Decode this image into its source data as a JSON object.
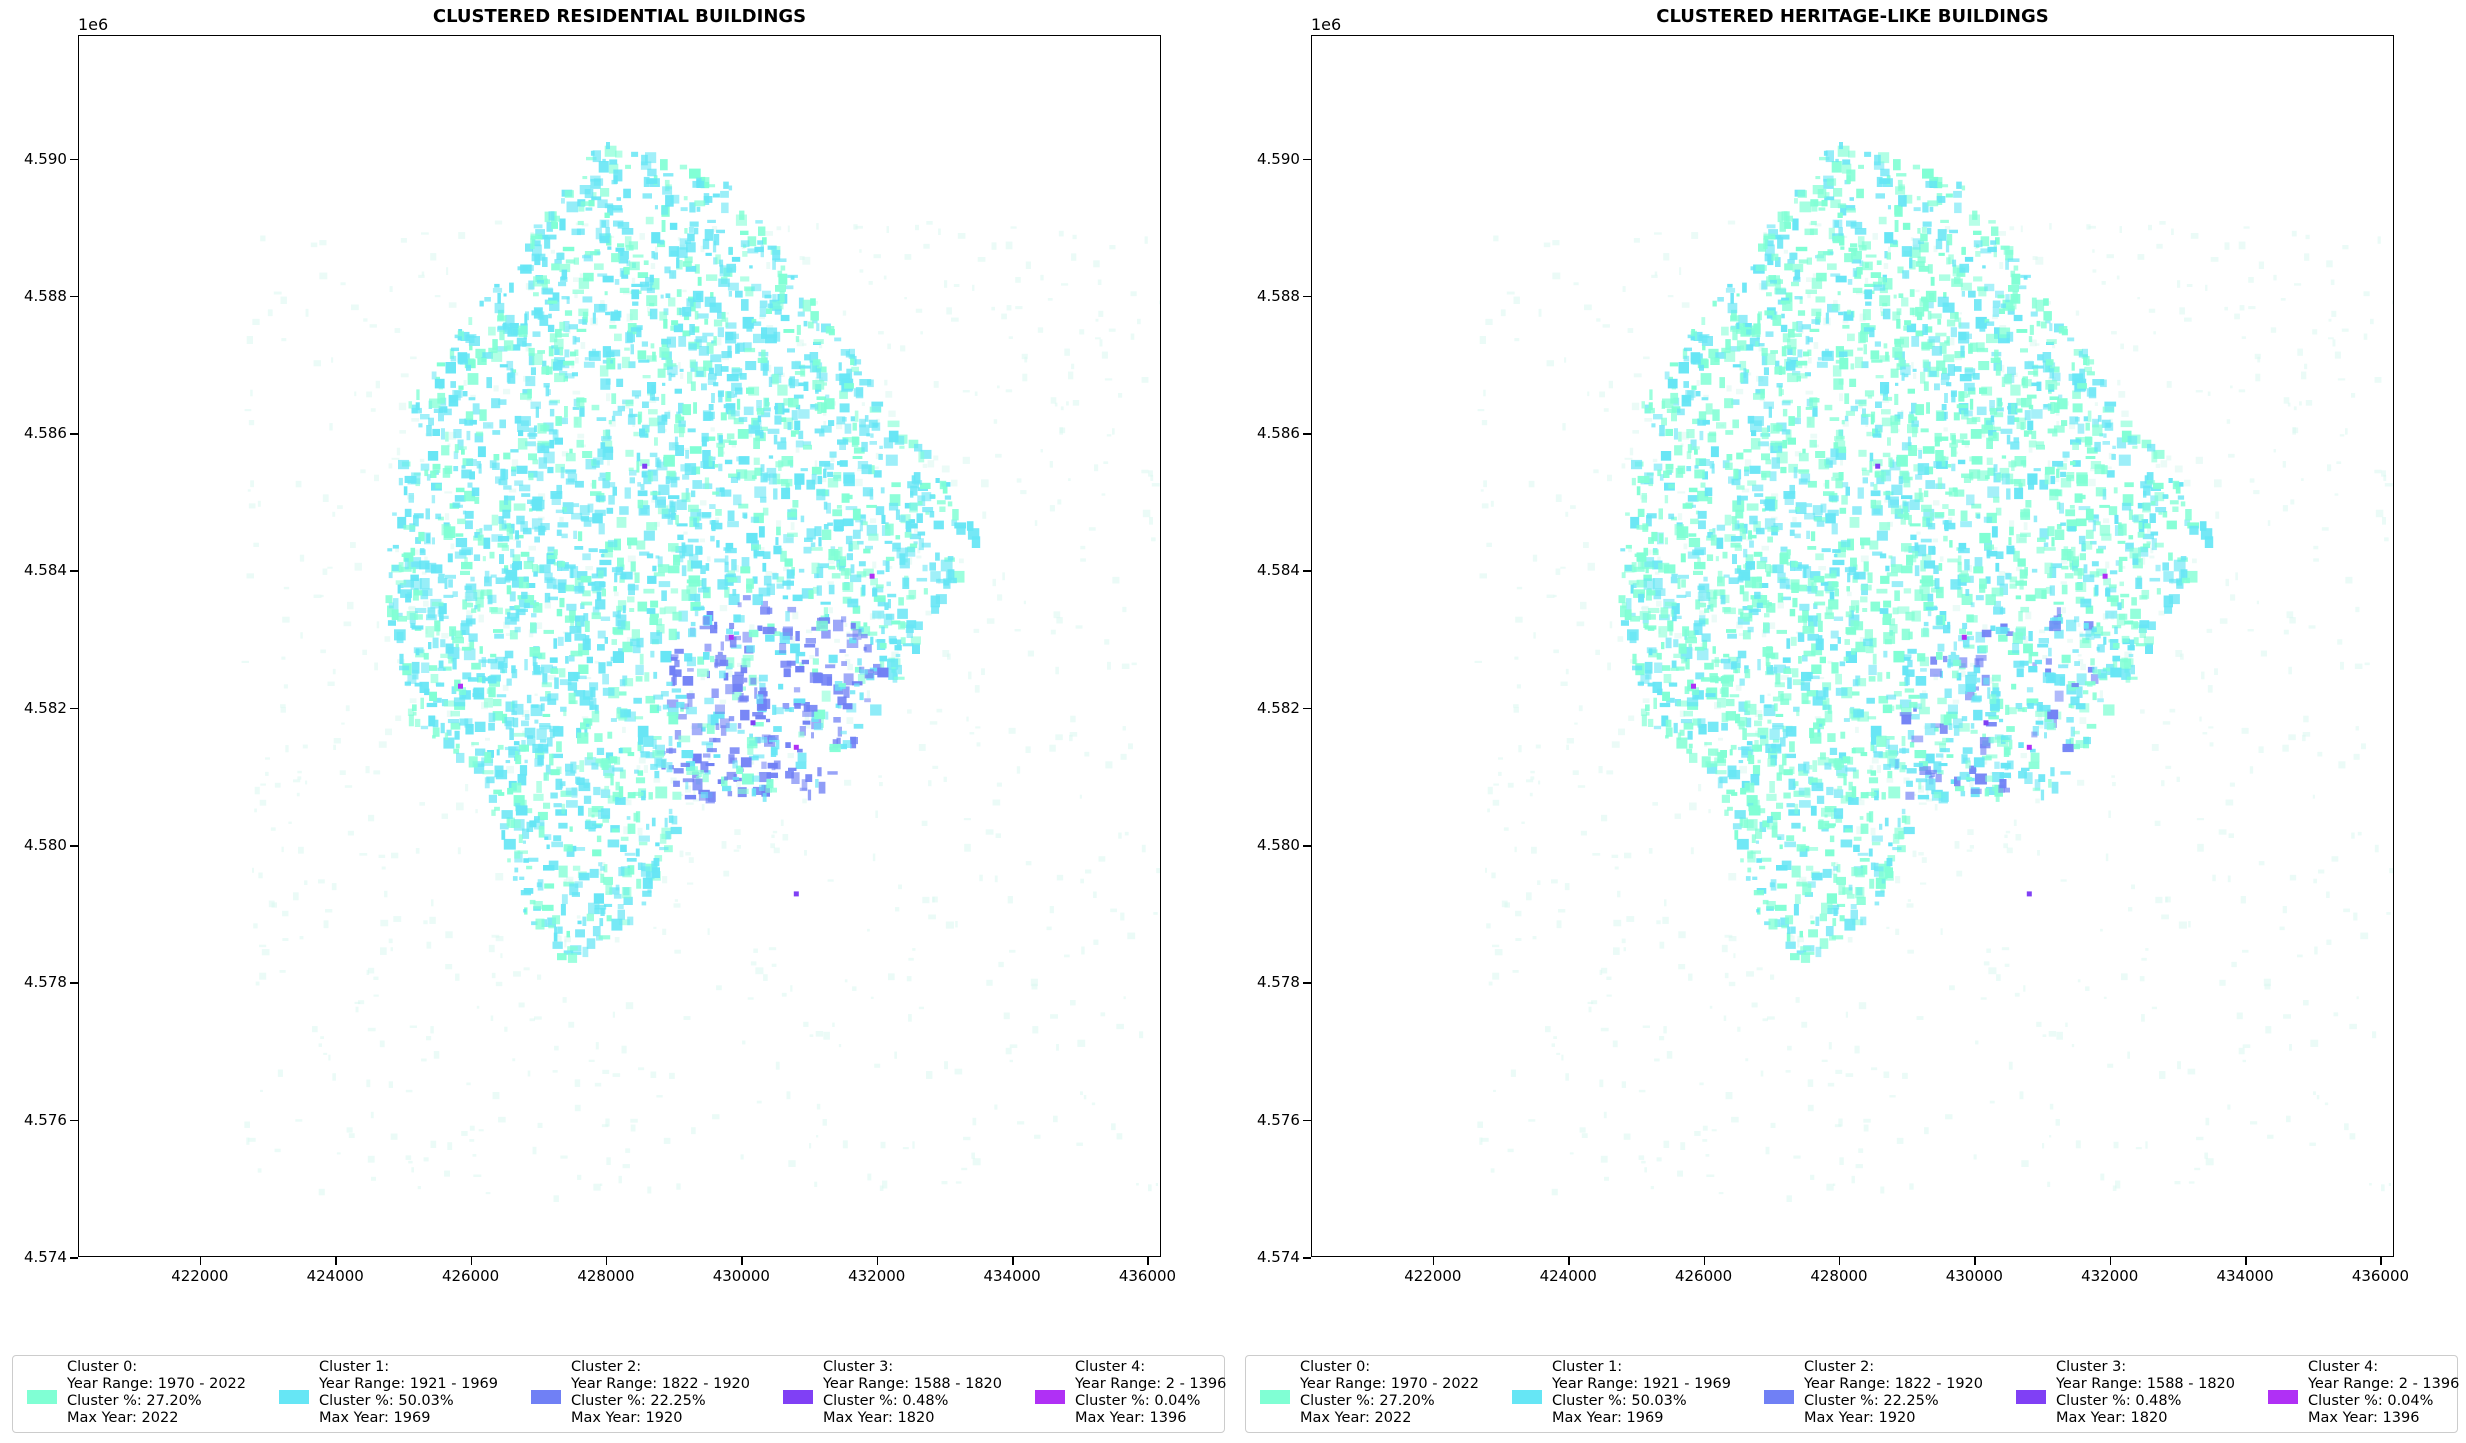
{
  "offset_label": "1e6",
  "panels": [
    {
      "id": "residential",
      "title": "CLUSTERED RESIDENTIAL BUILDINGS"
    },
    {
      "id": "heritage",
      "title": "CLUSTERED HERITAGE-LIKE BUILDINGS"
    }
  ],
  "axes": {
    "x_ticks": [
      "422000",
      "424000",
      "426000",
      "428000",
      "430000",
      "432000",
      "434000",
      "436000"
    ],
    "y_ticks": [
      "4.574",
      "4.576",
      "4.578",
      "4.580",
      "4.582",
      "4.584",
      "4.586",
      "4.588",
      "4.590"
    ],
    "xlim": [
      420200,
      436200
    ],
    "ylim": [
      4.574,
      4.5918
    ]
  },
  "legend": {
    "items": [
      {
        "name": "Cluster 0:",
        "range": "Year Range: 1970 - 2022",
        "pct": "Cluster %: 27.20%",
        "max": "Max Year: 2022",
        "color": "#80ffd4"
      },
      {
        "name": "Cluster 1:",
        "range": "Year Range: 1921 - 1969",
        "pct": "Cluster %: 50.03%",
        "max": "Max Year: 1969",
        "color": "#66e6f5"
      },
      {
        "name": "Cluster 2:",
        "range": "Year Range: 1822 - 1920",
        "pct": "Cluster %: 22.25%",
        "max": "Max Year: 1920",
        "color": "#7080f5"
      },
      {
        "name": "Cluster 3:",
        "range": "Year Range: 1588 - 1820",
        "pct": "Cluster %: 0.48%",
        "max": "Max Year: 1820",
        "color": "#8040f5"
      },
      {
        "name": "Cluster 4:",
        "range": "Year Range: 2 - 1396",
        "pct": "Cluster %: 0.04%",
        "max": "Max Year: 1396",
        "color": "#b030f5"
      }
    ]
  }
}
